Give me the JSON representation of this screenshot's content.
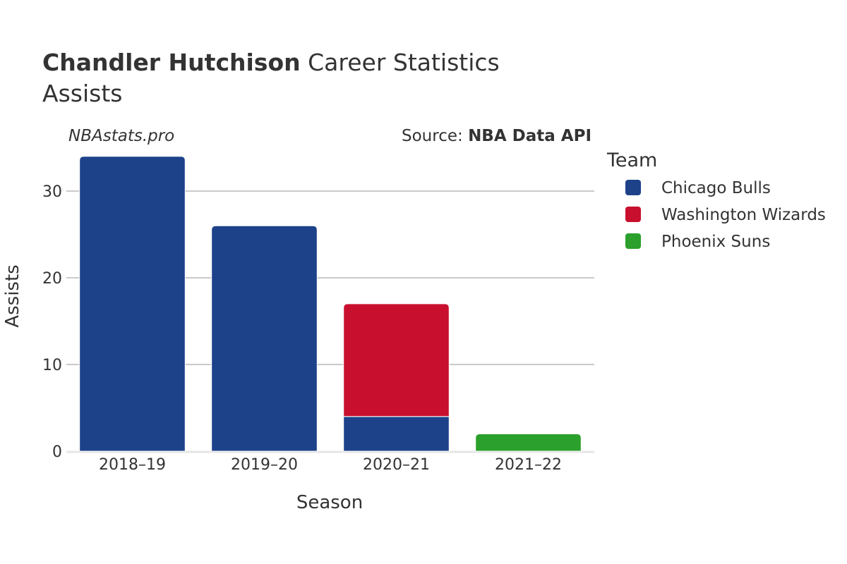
{
  "title": {
    "player": "Chandler Hutchison",
    "rest": " Career Statistics",
    "metric": "Assists"
  },
  "watermark": "NBAstats.pro",
  "source": {
    "prefix": "Source: ",
    "name": "NBA Data API"
  },
  "legend": {
    "title": "Team"
  },
  "colors": {
    "Chicago Bulls": "#1d428a",
    "Washington Wizards": "#c8102e",
    "Phoenix Suns": "#2ca02c"
  },
  "chart_data": {
    "type": "bar",
    "stacked": true,
    "xlabel": "Season",
    "ylabel": "Assists",
    "categories": [
      "2018–19",
      "2019–20",
      "2020–21",
      "2021–22"
    ],
    "series": [
      {
        "name": "Chicago Bulls",
        "values": [
          34,
          26,
          4,
          0
        ]
      },
      {
        "name": "Washington Wizards",
        "values": [
          0,
          0,
          13,
          0
        ]
      },
      {
        "name": "Phoenix Suns",
        "values": [
          0,
          0,
          0,
          2
        ]
      }
    ],
    "ylim": [
      0,
      34
    ],
    "yticks": [
      0,
      10,
      20,
      30
    ],
    "grid": true,
    "legend_position": "right"
  }
}
